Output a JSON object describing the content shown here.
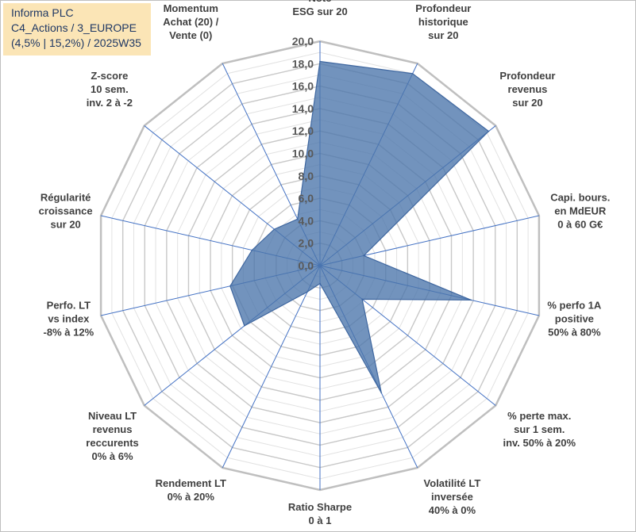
{
  "header": {
    "line1": "Informa PLC",
    "line2": "C4_Actions / 3_EUROPE",
    "line3": "(4,5% | 15,2%) / 2025W35"
  },
  "chart_data": {
    "type": "radar",
    "r_min": 0,
    "r_max": 20,
    "r_step": 2,
    "tick_labels": [
      "0,0",
      "2,0",
      "4,0",
      "6,0",
      "8,0",
      "10,0",
      "12,0",
      "14,0",
      "16,0",
      "18,0",
      "20,0"
    ],
    "grid": true,
    "series_color": "#4a74aa",
    "axes": [
      {
        "label": [
          "Note",
          "ESG sur 20"
        ],
        "value": 18.2
      },
      {
        "label": [
          "Profondeur",
          "historique",
          "sur 20"
        ],
        "value": 19.0
      },
      {
        "label": [
          "Profondeur",
          "revenus",
          "sur 20"
        ],
        "value": 19.2
      },
      {
        "label": [
          "Capi. bours.",
          "en MdEUR",
          "0 à 60 G€"
        ],
        "value": 4.0
      },
      {
        "label": [
          "% perfo 1A",
          "positive",
          "50% à 80%"
        ],
        "value": 13.8
      },
      {
        "label": [
          "% perte max.",
          "sur 1 sem.",
          "inv. 50% à 20%"
        ],
        "value": 4.8
      },
      {
        "label": [
          "Volatilité LT",
          "inversée",
          "40% à 0%"
        ],
        "value": 12.6
      },
      {
        "label": [
          "Ratio Sharpe",
          "0 à 1"
        ],
        "value": 1.6
      },
      {
        "label": [
          "Rendement LT",
          "0% à 20%"
        ],
        "value": 2.6
      },
      {
        "label": [
          "Niveau LT",
          "revenus",
          "reccurents",
          "0% à 6%"
        ],
        "value": 8.6
      },
      {
        "label": [
          "Perfo. LT",
          "vs index",
          "-8% à 12%"
        ],
        "value": 8.2
      },
      {
        "label": [
          "Régularité",
          "croissance",
          "sur 20"
        ],
        "value": 6.2
      },
      {
        "label": [
          "Z-score",
          "10 sem.",
          "inv. 2 à -2"
        ],
        "value": 5.2
      },
      {
        "label": [
          "Momentum",
          "Achat (20) /",
          "Vente (0)"
        ],
        "value": 4.6
      }
    ]
  }
}
